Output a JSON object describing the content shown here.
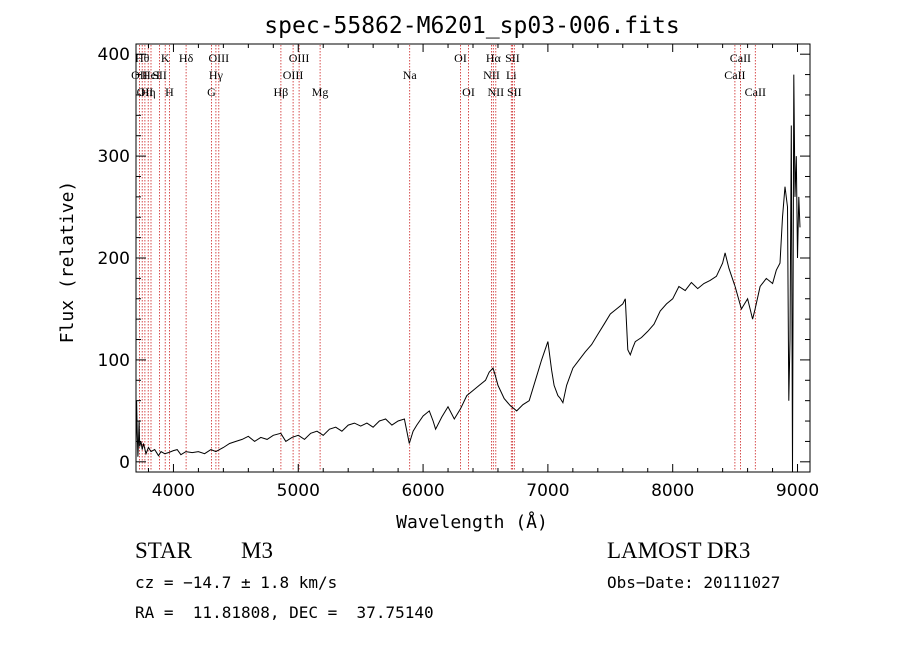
{
  "chart_data": {
    "type": "line",
    "title": "spec-55862-M6201_sp03-006.fits",
    "xlabel": "Wavelength (Å)",
    "ylabel": "Flux (relative)",
    "xlim": [
      3700,
      9100
    ],
    "ylim": [
      -10,
      410
    ],
    "x_ticks": [
      4000,
      5000,
      6000,
      7000,
      8000,
      9000
    ],
    "y_ticks": [
      0,
      100,
      200,
      300,
      400
    ],
    "grid": false,
    "line_color": "#000000",
    "marker_color": "#cc2222",
    "spectrum": {
      "x": [
        3700,
        3705,
        3710,
        3715,
        3720,
        3725,
        3730,
        3740,
        3750,
        3760,
        3780,
        3800,
        3820,
        3850,
        3880,
        3900,
        3930,
        3960,
        4000,
        4030,
        4060,
        4100,
        4150,
        4200,
        4250,
        4300,
        4340,
        4400,
        4450,
        4500,
        4550,
        4600,
        4650,
        4700,
        4750,
        4800,
        4860,
        4900,
        4950,
        5000,
        5050,
        5100,
        5150,
        5200,
        5250,
        5300,
        5350,
        5400,
        5450,
        5500,
        5550,
        5600,
        5650,
        5700,
        5750,
        5800,
        5850,
        5890,
        5920,
        5950,
        6000,
        6050,
        6080,
        6100,
        6150,
        6200,
        6250,
        6300,
        6350,
        6400,
        6450,
        6500,
        6530,
        6560,
        6580,
        6600,
        6650,
        6700,
        6750,
        6800,
        6850,
        6900,
        6950,
        7000,
        7030,
        7050,
        7080,
        7100,
        7120,
        7150,
        7200,
        7250,
        7300,
        7350,
        7400,
        7450,
        7500,
        7550,
        7600,
        7620,
        7640,
        7660,
        7680,
        7700,
        7750,
        7800,
        7850,
        7900,
        7950,
        8000,
        8050,
        8100,
        8150,
        8200,
        8250,
        8300,
        8350,
        8400,
        8420,
        8450,
        8500,
        8550,
        8600,
        8640,
        8660,
        8700,
        8750,
        8800,
        8830,
        8860,
        8880,
        8900,
        8920,
        8930,
        8940,
        8950,
        8960,
        8970,
        8980,
        8990,
        9000,
        9010,
        9020
      ],
      "y": [
        10,
        60,
        30,
        5,
        20,
        40,
        15,
        20,
        12,
        18,
        8,
        14,
        10,
        12,
        6,
        10,
        8,
        9,
        11,
        12,
        7,
        10,
        9,
        10,
        8,
        12,
        10,
        14,
        18,
        20,
        22,
        25,
        20,
        24,
        22,
        26,
        28,
        20,
        24,
        26,
        22,
        28,
        30,
        26,
        32,
        34,
        30,
        36,
        38,
        35,
        38,
        34,
        40,
        42,
        36,
        40,
        42,
        18,
        30,
        36,
        45,
        50,
        40,
        32,
        44,
        54,
        42,
        52,
        65,
        70,
        75,
        80,
        88,
        92,
        84,
        75,
        62,
        55,
        50,
        56,
        60,
        80,
        100,
        118,
        90,
        75,
        65,
        62,
        58,
        75,
        92,
        100,
        108,
        115,
        125,
        135,
        145,
        150,
        155,
        160,
        110,
        105,
        112,
        118,
        122,
        128,
        135,
        148,
        155,
        160,
        172,
        168,
        176,
        170,
        175,
        178,
        182,
        195,
        205,
        190,
        172,
        150,
        160,
        140,
        150,
        172,
        180,
        175,
        188,
        195,
        240,
        270,
        250,
        60,
        120,
        330,
        -15,
        380,
        260,
        300,
        200,
        260,
        230
      ]
    },
    "lines": [
      {
        "w": 3727,
        "label": "OII",
        "row": 2
      },
      {
        "w": 3750,
        "label": "Hθ",
        "row": 1
      },
      {
        "w": 3771,
        "label": "OII",
        "row": 3
      },
      {
        "w": 3798,
        "label": "Hη",
        "row": 3
      },
      {
        "w": 3820,
        "label": "HeI",
        "row": 2
      },
      {
        "w": 3889,
        "label": "SII",
        "row": 2
      },
      {
        "w": 3934,
        "label": "K",
        "row": 1
      },
      {
        "w": 3968,
        "label": "H",
        "row": 3
      },
      {
        "w": 4101,
        "label": "Hδ",
        "row": 1
      },
      {
        "w": 4304,
        "label": "G",
        "row": 3
      },
      {
        "w": 4340,
        "label": "Hγ",
        "row": 2
      },
      {
        "w": 4363,
        "label": "OIII",
        "row": 1
      },
      {
        "w": 4861,
        "label": "Hβ",
        "row": 3
      },
      {
        "w": 4959,
        "label": "OIII",
        "row": 2
      },
      {
        "w": 5007,
        "label": "OIII",
        "row": 1
      },
      {
        "w": 5175,
        "label": "Mg",
        "row": 3
      },
      {
        "w": 5893,
        "label": "Na",
        "row": 2
      },
      {
        "w": 6300,
        "label": "OI",
        "row": 1
      },
      {
        "w": 6364,
        "label": "OI",
        "row": 3
      },
      {
        "w": 6548,
        "label": "NII",
        "row": 2
      },
      {
        "w": 6563,
        "label": "Hα",
        "row": 1
      },
      {
        "w": 6583,
        "label": "NII",
        "row": 3
      },
      {
        "w": 6707,
        "label": "Li",
        "row": 2
      },
      {
        "w": 6716,
        "label": "SII",
        "row": 1
      },
      {
        "w": 6731,
        "label": "SII",
        "row": 3
      },
      {
        "w": 8498,
        "label": "CaII",
        "row": 2
      },
      {
        "w": 8542,
        "label": "CaII",
        "row": 1
      },
      {
        "w": 8662,
        "label": "CaII",
        "row": 3
      }
    ]
  },
  "info": {
    "class": "STAR",
    "subclass": "M3",
    "survey": "LAMOST DR3",
    "cz": "cz = −14.7 ± 1.8 km/s",
    "obs_date": "Obs−Date: 20111027",
    "coords": "RA =  11.81808, DEC =  37.75140"
  }
}
